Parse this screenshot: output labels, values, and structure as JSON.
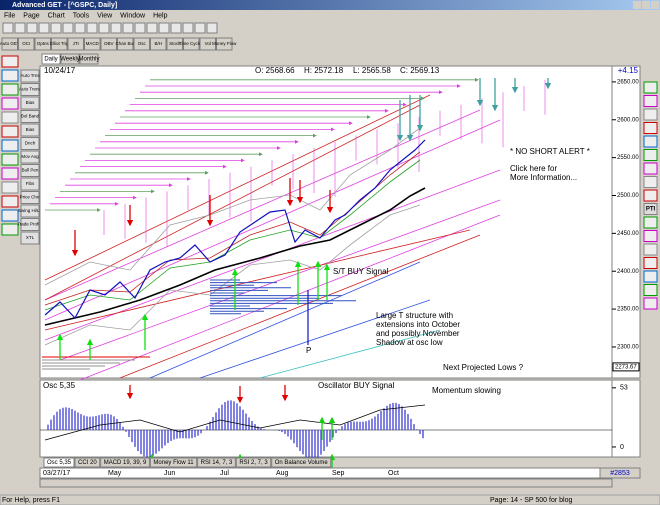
{
  "window": {
    "title": "Advanced GET - [^GSPC, Daily]"
  },
  "menu": [
    "File",
    "Page",
    "Chart",
    "Tools",
    "View",
    "Window",
    "Help"
  ],
  "toolbar": [
    "Auto GET",
    "OCI",
    "Optns",
    "Elliot Trig",
    "JTI",
    "MACD",
    "OBV",
    "Chan Bull",
    "Osc",
    "B/H",
    "Stock",
    "Time Cycles",
    "Vol",
    "Money Flow"
  ],
  "timeframes": [
    "Daily",
    "Weekly",
    "Monthly"
  ],
  "left_tools": [
    "Auto Trns",
    "Auto Trend",
    "Bias",
    "Bol Band",
    "Bias",
    "Dnch",
    "Mov Avg",
    "Bull Pen",
    "Fibs",
    "Price Chnl",
    "Swing Hi/Lo",
    "Trade Profile",
    "XTL"
  ],
  "right_tools": [
    "PTI"
  ],
  "chart_header": {
    "date": "10/24/17",
    "open": "O: 2568.66",
    "high": "H: 2572.18",
    "low": "L: 2565.58",
    "close": "C: 2569.13",
    "change": "+4.15"
  },
  "price_axis": {
    "ylim": [
      2259,
      2671
    ],
    "yticks": [
      {
        "value": 2650,
        "label": "2650.00"
      },
      {
        "value": 2600,
        "label": "2600.00"
      },
      {
        "value": 2550,
        "label": "2550.00"
      },
      {
        "value": 2500,
        "label": "2500.00"
      },
      {
        "value": 2450,
        "label": "2450.00"
      },
      {
        "value": 2400,
        "label": "2400.00"
      },
      {
        "value": 2350,
        "label": "2350.00"
      },
      {
        "value": 2300,
        "label": "2300.00"
      }
    ],
    "last_value": 2273.67
  },
  "annotations": {
    "alert": "* NO SHORT ALERT *",
    "click_info": [
      "Click here for",
      "More Information..."
    ],
    "buy_signal": "S/T BUY Signal",
    "structure": [
      "Large T structure with",
      "extensions into October",
      "and possibly November",
      "Shadow at osc low"
    ],
    "p_marker": "P",
    "projected": "Next Projected Lows ?"
  },
  "oscillator": {
    "title": "Osc 5,35",
    "buy_signal": "Oscillator BUY Signal",
    "momentum": "Momentum slowing",
    "ylim": [
      -9,
      60
    ],
    "yticks": [
      53,
      0
    ]
  },
  "indicator_tabs": [
    "Osc 5,35",
    "CCI 20",
    "MACD 19, 39, 9",
    "Money Flow 11",
    "RSI 14, 7, 3",
    "RSI 2, 7, 3",
    "On Balance Volume"
  ],
  "x_axis": {
    "start": "03/27/17",
    "months": [
      "May",
      "Jun",
      "Jul",
      "Aug",
      "Sep",
      "Oct"
    ]
  },
  "status": {
    "help": "For Help, press F1",
    "page": "Page: 14 - SP 500 for blog",
    "record": "#2853"
  }
}
